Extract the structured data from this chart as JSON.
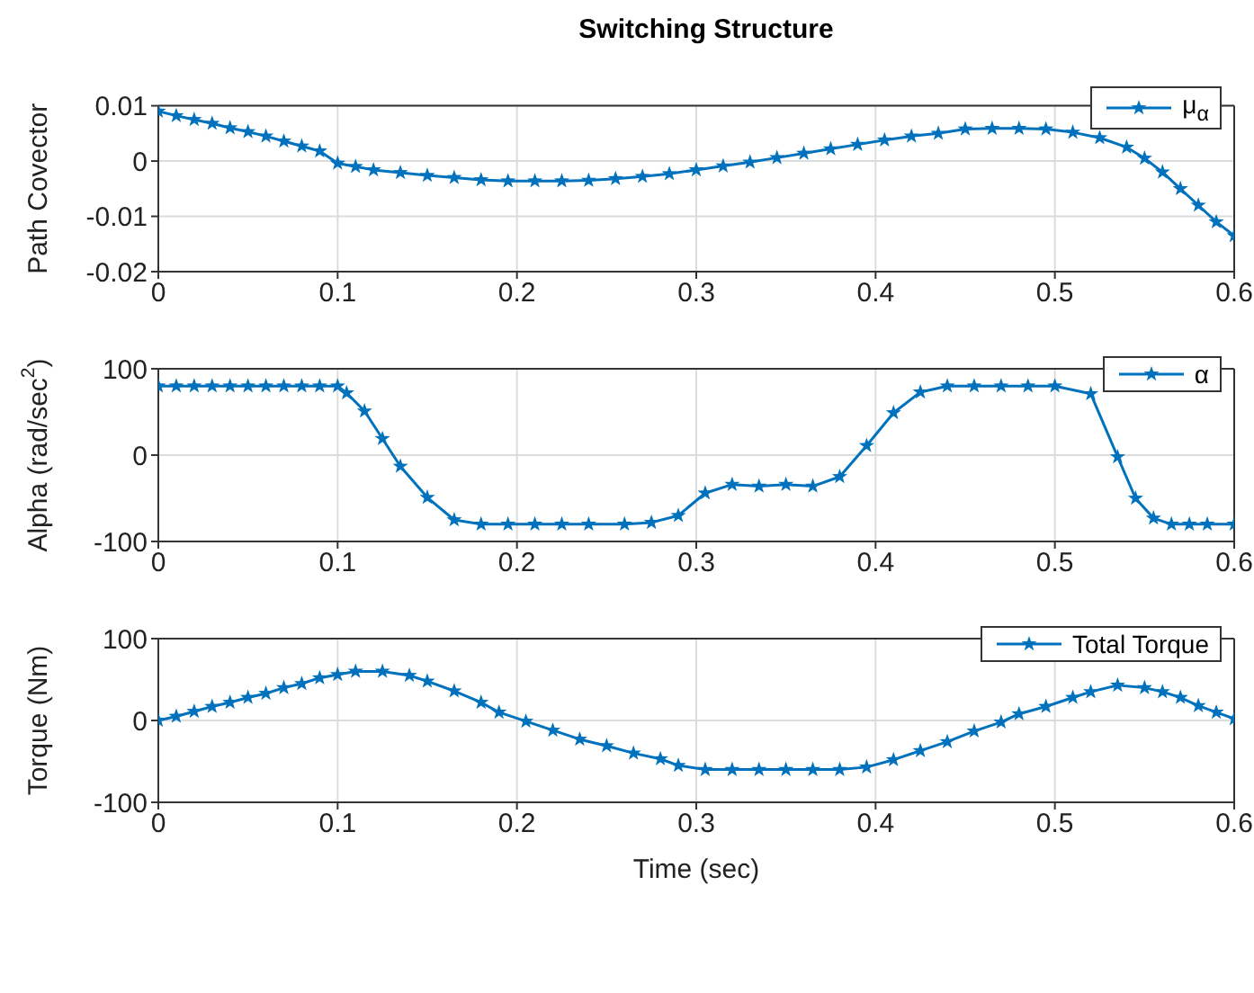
{
  "chart_data": [
    {
      "type": "line",
      "title": "Switching Structure",
      "ylabel": "Path Covector",
      "xlim": [
        0,
        0.6
      ],
      "xticks": [
        0,
        0.1,
        0.2,
        0.3,
        0.4,
        0.5,
        0.6
      ],
      "ylim": [
        -0.02,
        0.01
      ],
      "yticks": [
        -0.02,
        -0.01,
        0,
        0.01
      ],
      "grid": true,
      "legend": "top right",
      "marker": "star",
      "line_style": "solid",
      "series": [
        {
          "name": "μ$_{α}$",
          "color": "#0072bd",
          "x": [
            0,
            0.01,
            0.02,
            0.03,
            0.04,
            0.05,
            0.06,
            0.07,
            0.08,
            0.09,
            0.1,
            0.11,
            0.12,
            0.135,
            0.15,
            0.165,
            0.18,
            0.195,
            0.21,
            0.225,
            0.24,
            0.255,
            0.27,
            0.285,
            0.3,
            0.315,
            0.33,
            0.345,
            0.36,
            0.375,
            0.39,
            0.405,
            0.42,
            0.435,
            0.45,
            0.465,
            0.48,
            0.495,
            0.51,
            0.525,
            0.54,
            0.55,
            0.56,
            0.57,
            0.58,
            0.59,
            0.6
          ],
          "values": [
            0.009,
            0.0082,
            0.0075,
            0.0068,
            0.006,
            0.0053,
            0.0045,
            0.0036,
            0.0027,
            0.0018,
            -0.0004,
            -0.001,
            -0.0016,
            -0.0021,
            -0.0026,
            -0.003,
            -0.0034,
            -0.0036,
            -0.0036,
            -0.0036,
            -0.0035,
            -0.0032,
            -0.0028,
            -0.0023,
            -0.0016,
            -0.0009,
            -0.0002,
            0.0006,
            0.0014,
            0.0022,
            0.003,
            0.0038,
            0.0045,
            0.005,
            0.0058,
            0.0059,
            0.0059,
            0.0058,
            0.0052,
            0.0042,
            0.0025,
            0.0005,
            -0.002,
            -0.005,
            -0.008,
            -0.011,
            -0.0135
          ]
        }
      ]
    },
    {
      "type": "line",
      "ylabel": "Alpha (rad/sec$^{2}$)",
      "xlim": [
        0,
        0.6
      ],
      "xticks": [
        0,
        0.1,
        0.2,
        0.3,
        0.4,
        0.5,
        0.6
      ],
      "ylim": [
        -100,
        100
      ],
      "yticks": [
        -100,
        0,
        100
      ],
      "grid": true,
      "legend": "top right",
      "marker": "star",
      "line_style": "solid",
      "series": [
        {
          "name": "α",
          "color": "#0072bd",
          "x": [
            0,
            0.01,
            0.02,
            0.03,
            0.04,
            0.05,
            0.06,
            0.07,
            0.08,
            0.09,
            0.1,
            0.105,
            0.115,
            0.125,
            0.135,
            0.15,
            0.165,
            0.18,
            0.195,
            0.21,
            0.225,
            0.24,
            0.26,
            0.275,
            0.29,
            0.305,
            0.32,
            0.335,
            0.35,
            0.365,
            0.38,
            0.395,
            0.41,
            0.425,
            0.44,
            0.455,
            0.47,
            0.485,
            0.5,
            0.52,
            0.535,
            0.545,
            0.555,
            0.565,
            0.575,
            0.585,
            0.6
          ],
          "values": [
            80,
            80,
            80,
            80,
            80,
            80,
            80,
            80,
            80,
            80,
            80,
            72,
            51,
            19,
            -13,
            -49,
            -75,
            -80,
            -80,
            -80,
            -80,
            -80,
            -80,
            -78,
            -70,
            -44,
            -34,
            -36,
            -34,
            -36,
            -25,
            11,
            49,
            73,
            80,
            80,
            80,
            80,
            80,
            71,
            -2,
            -50,
            -73,
            -80,
            -80,
            -80,
            -80
          ]
        }
      ]
    },
    {
      "type": "line",
      "xlabel": "Time (sec)",
      "ylabel": "Torque (Nm)",
      "xlim": [
        0,
        0.6
      ],
      "xticks": [
        0,
        0.1,
        0.2,
        0.3,
        0.4,
        0.5,
        0.6
      ],
      "ylim": [
        -100,
        100
      ],
      "yticks": [
        -100,
        0,
        100
      ],
      "grid": true,
      "legend": "top right",
      "marker": "star",
      "line_style": "solid",
      "series": [
        {
          "name": "Total Torque",
          "color": "#0072bd",
          "x": [
            0,
            0.01,
            0.02,
            0.03,
            0.04,
            0.05,
            0.06,
            0.07,
            0.08,
            0.09,
            0.1,
            0.11,
            0.125,
            0.14,
            0.15,
            0.165,
            0.18,
            0.19,
            0.205,
            0.22,
            0.235,
            0.25,
            0.265,
            0.28,
            0.29,
            0.305,
            0.32,
            0.335,
            0.35,
            0.365,
            0.38,
            0.395,
            0.41,
            0.425,
            0.44,
            0.455,
            0.47,
            0.48,
            0.495,
            0.51,
            0.52,
            0.535,
            0.55,
            0.56,
            0.57,
            0.58,
            0.59,
            0.6
          ],
          "values": [
            0,
            5,
            11,
            17,
            22,
            28,
            33,
            40,
            45,
            52,
            56,
            60,
            60,
            55,
            48,
            36,
            22,
            10,
            -1,
            -12,
            -23,
            -31,
            -40,
            -47,
            -55,
            -60,
            -60,
            -60,
            -60,
            -60,
            -60,
            -57,
            -48,
            -37,
            -26,
            -13,
            -2,
            8,
            17,
            28,
            35,
            43,
            40,
            35,
            28,
            18,
            10,
            2
          ]
        }
      ]
    }
  ]
}
